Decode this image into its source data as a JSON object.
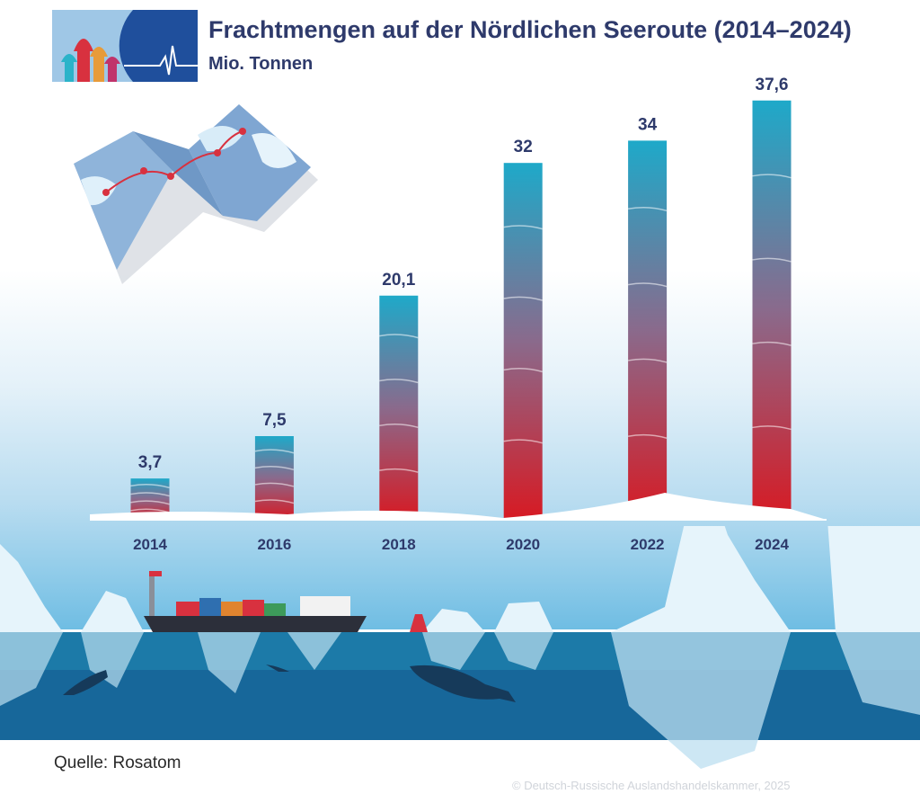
{
  "header": {
    "title": "Frachtmengen auf der Nördlichen Seeroute (2014–2024)",
    "subtitle": "Mio. Tonnen"
  },
  "chart_data": {
    "type": "bar",
    "title": "Frachtmengen auf der Nördlichen Seeroute (2014–2024)",
    "subtitle": "Mio. Tonnen",
    "categories": [
      "2014",
      "2016",
      "2018",
      "2020",
      "2022",
      "2024"
    ],
    "values": [
      3.7,
      7.5,
      20.1,
      32,
      34,
      37.6
    ],
    "value_labels": [
      "3,7",
      "7,5",
      "20,1",
      "32",
      "34",
      "37,6"
    ],
    "ylim": [
      0,
      40
    ],
    "grid": false,
    "legend": "none",
    "bar_gradient": {
      "top": "#1ea9c9",
      "middle": "#8a6a8c",
      "bottom": "#d71a23"
    }
  },
  "footer": {
    "source": "Quelle: Rosatom",
    "copyright": "© Deutsch-Russische Auslandshandelskammer, 2025"
  },
  "decor": {
    "logo_icon": "onion-domes-heartbeat-logo",
    "map_icon": "folded-arctic-map",
    "scene_icons": [
      "iceberg",
      "container-ship",
      "whale",
      "polar-bear",
      "walrus",
      "buoy"
    ]
  }
}
